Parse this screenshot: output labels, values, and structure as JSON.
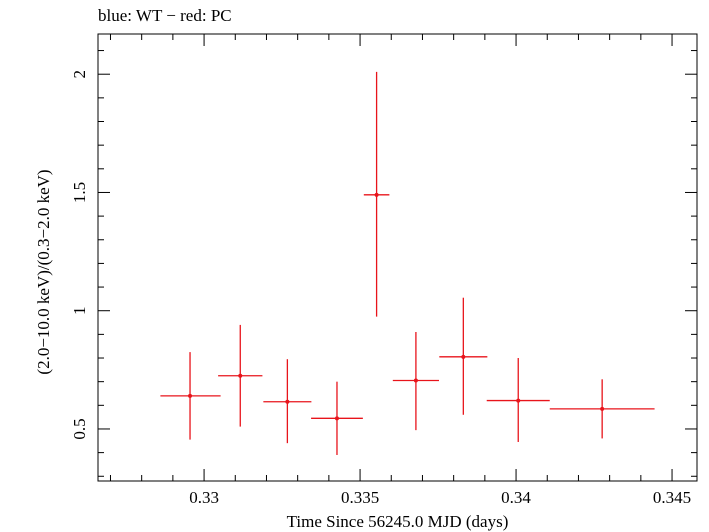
{
  "chart_data": {
    "type": "scatter",
    "title": "blue: WT − red: PC",
    "xlabel": "Time Since 56245.0 MJD (days)",
    "ylabel": "(2.0−10.0 keV)/(0.3−2.0 keV)",
    "xlim": [
      0.3266,
      0.3458
    ],
    "ylim": [
      0.28,
      2.17
    ],
    "x_ticks": [
      0.33,
      0.335,
      0.34,
      0.345
    ],
    "x_tick_labels": [
      "0.33",
      "0.335",
      "0.34",
      "0.345"
    ],
    "y_ticks": [
      0.5,
      1,
      1.5,
      2
    ],
    "y_tick_labels": [
      "0.5",
      "1",
      "1.5",
      "2"
    ],
    "grid": false,
    "series": [
      {
        "color": "#e8141b",
        "points": [
          {
            "x": 0.32955,
            "xerr_low": 0.00095,
            "xerr_high": 0.00098,
            "y": 0.64,
            "y_low": 0.455,
            "y_high": 0.825
          },
          {
            "x": 0.33116,
            "xerr_low": 0.00071,
            "xerr_high": 0.00071,
            "y": 0.725,
            "y_low": 0.51,
            "y_high": 0.94
          },
          {
            "x": 0.33267,
            "xerr_low": 0.00077,
            "xerr_high": 0.00077,
            "y": 0.615,
            "y_low": 0.44,
            "y_high": 0.795
          },
          {
            "x": 0.33426,
            "xerr_low": 0.00083,
            "xerr_high": 0.00083,
            "y": 0.545,
            "y_low": 0.39,
            "y_high": 0.7
          },
          {
            "x": 0.33553,
            "xerr_low": 0.00041,
            "xerr_high": 0.00041,
            "y": 1.49,
            "y_low": 0.975,
            "y_high": 2.01
          },
          {
            "x": 0.33679,
            "xerr_low": 0.00074,
            "xerr_high": 0.00074,
            "y": 0.705,
            "y_low": 0.495,
            "y_high": 0.91
          },
          {
            "x": 0.33831,
            "xerr_low": 0.00077,
            "xerr_high": 0.00077,
            "y": 0.805,
            "y_low": 0.56,
            "y_high": 1.055
          },
          {
            "x": 0.34007,
            "xerr_low": 0.00101,
            "xerr_high": 0.00101,
            "y": 0.62,
            "y_low": 0.445,
            "y_high": 0.8
          },
          {
            "x": 0.34276,
            "xerr_low": 0.00168,
            "xerr_high": 0.00168,
            "y": 0.585,
            "y_low": 0.46,
            "y_high": 0.71
          }
        ]
      }
    ]
  }
}
